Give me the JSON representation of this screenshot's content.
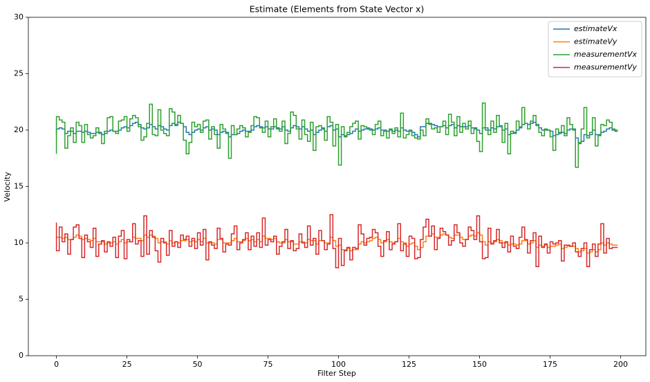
{
  "chart_data": {
    "type": "step",
    "title": "Estimate (Elements from State Vector x)",
    "x_label": "Filter Step",
    "y_label": "Velocity",
    "xlim": [
      -9.95,
      208.95
    ],
    "ylim": [
      0,
      30
    ],
    "xticks": [
      0,
      25,
      50,
      75,
      100,
      125,
      150,
      175,
      200
    ],
    "yticks": [
      0,
      5,
      10,
      15,
      20,
      25,
      30
    ],
    "grid": false,
    "legend": "upper right",
    "x": [
      0,
      1,
      2,
      3,
      4,
      5,
      6,
      7,
      8,
      9,
      10,
      11,
      12,
      13,
      14,
      15,
      16,
      17,
      18,
      19,
      20,
      21,
      22,
      23,
      24,
      25,
      26,
      27,
      28,
      29,
      30,
      31,
      32,
      33,
      34,
      35,
      36,
      37,
      38,
      39,
      40,
      41,
      42,
      43,
      44,
      45,
      46,
      47,
      48,
      49,
      50,
      51,
      52,
      53,
      54,
      55,
      56,
      57,
      58,
      59,
      60,
      61,
      62,
      63,
      64,
      65,
      66,
      67,
      68,
      69,
      70,
      71,
      72,
      73,
      74,
      75,
      76,
      77,
      78,
      79,
      80,
      81,
      82,
      83,
      84,
      85,
      86,
      87,
      88,
      89,
      90,
      91,
      92,
      93,
      94,
      95,
      96,
      97,
      98,
      99,
      100,
      101,
      102,
      103,
      104,
      105,
      106,
      107,
      108,
      109,
      110,
      111,
      112,
      113,
      114,
      115,
      116,
      117,
      118,
      119,
      120,
      121,
      122,
      123,
      124,
      125,
      126,
      127,
      128,
      129,
      130,
      131,
      132,
      133,
      134,
      135,
      136,
      137,
      138,
      139,
      140,
      141,
      142,
      143,
      144,
      145,
      146,
      147,
      148,
      149,
      150,
      151,
      152,
      153,
      154,
      155,
      156,
      157,
      158,
      159,
      160,
      161,
      162,
      163,
      164,
      165,
      166,
      167,
      168,
      169,
      170,
      171,
      172,
      173,
      174,
      175,
      176,
      177,
      178,
      179,
      180,
      181,
      182,
      183,
      184,
      185,
      186,
      187,
      188,
      189,
      190,
      191,
      192,
      193,
      194,
      195,
      196,
      197,
      198,
      199
    ],
    "series": [
      {
        "name": "estimateVx",
        "color": "#1f77b4",
        "values": [
          19.6,
          20.1,
          20.2,
          20.1,
          19.7,
          19.9,
          19.9,
          19.7,
          19.9,
          19.9,
          19.8,
          19.9,
          19.8,
          19.7,
          19.7,
          19.8,
          19.8,
          19.6,
          19.7,
          19.9,
          20.0,
          19.9,
          19.9,
          20.0,
          20.2,
          20.3,
          20.2,
          20.4,
          20.6,
          20.7,
          20.5,
          20.2,
          20.1,
          20.2,
          20.5,
          20.3,
          20.1,
          20.4,
          20.3,
          20.1,
          20.0,
          20.4,
          20.6,
          20.5,
          20.7,
          20.6,
          20.3,
          19.8,
          19.6,
          19.8,
          20.0,
          20.1,
          20.0,
          20.2,
          20.3,
          20.0,
          20.1,
          20.0,
          19.6,
          19.8,
          19.9,
          19.8,
          19.4,
          19.6,
          19.6,
          19.7,
          19.9,
          20.0,
          19.9,
          19.9,
          20.0,
          20.3,
          20.4,
          20.3,
          20.2,
          20.3,
          20.1,
          20.1,
          20.3,
          20.2,
          20.1,
          20.3,
          20.0,
          19.9,
          20.2,
          20.4,
          20.3,
          20.1,
          20.3,
          20.1,
          19.9,
          20.0,
          19.6,
          19.8,
          20.0,
          20.1,
          19.9,
          20.3,
          20.4,
          20.0,
          20.1,
          19.4,
          19.6,
          19.5,
          19.6,
          19.7,
          19.9,
          20.1,
          19.9,
          20.0,
          20.1,
          20.1,
          20.1,
          20.0,
          20.1,
          20.2,
          20.0,
          20.0,
          19.9,
          20.0,
          19.9,
          20.0,
          19.9,
          20.2,
          20.0,
          19.9,
          19.9,
          19.8,
          19.6,
          19.4,
          20.3,
          20.3,
          20.6,
          20.6,
          20.5,
          20.4,
          20.3,
          20.3,
          20.4,
          20.2,
          20.4,
          20.5,
          20.2,
          20.4,
          20.3,
          20.3,
          20.3,
          20.4,
          20.2,
          20.2,
          20.0,
          19.7,
          20.2,
          20.2,
          20.0,
          20.2,
          20.1,
          20.3,
          20.3,
          20.0,
          20.1,
          19.6,
          19.7,
          19.8,
          20.0,
          20.2,
          20.5,
          20.6,
          20.5,
          20.6,
          20.7,
          20.5,
          20.2,
          20.0,
          20.0,
          20.0,
          19.9,
          19.5,
          19.6,
          19.7,
          19.8,
          19.7,
          20.0,
          20.1,
          20.1,
          19.3,
          18.8,
          19.0,
          19.6,
          19.5,
          19.6,
          20.0,
          19.6,
          19.6,
          19.8,
          19.9,
          20.1,
          20.2,
          20.0,
          19.9
        ]
      },
      {
        "name": "estimateVy",
        "color": "#ff7f0e",
        "values": [
          10.4,
          10.5,
          10.5,
          10.4,
          10.5,
          10.3,
          10.3,
          10.5,
          10.7,
          10.6,
          10.3,
          10.4,
          10.3,
          10.2,
          10.4,
          10.1,
          10.1,
          10.1,
          9.9,
          10.0,
          10.0,
          10.1,
          9.9,
          10.1,
          10.3,
          10.0,
          10.1,
          10.1,
          10.5,
          10.4,
          10.4,
          10.2,
          10.7,
          10.5,
          10.7,
          10.6,
          10.4,
          10.0,
          10.1,
          10.1,
          9.9,
          10.2,
          10.0,
          10.1,
          10.0,
          10.2,
          10.2,
          10.3,
          10.1,
          10.2,
          10.1,
          10.3,
          10.1,
          10.4,
          10.0,
          10.0,
          10.0,
          9.9,
          10.3,
          10.3,
          10.0,
          10.0,
          10.0,
          10.2,
          10.4,
          10.1,
          10.1,
          10.2,
          10.4,
          10.2,
          10.3,
          10.1,
          10.3,
          10.1,
          10.6,
          10.4,
          10.4,
          10.3,
          10.4,
          10.1,
          10.0,
          10.0,
          10.3,
          10.1,
          10.1,
          9.9,
          9.9,
          10.1,
          10.1,
          10.0,
          10.3,
          10.2,
          10.2,
          9.9,
          10.2,
          10.2,
          10.0,
          10.0,
          10.5,
          10.2,
          9.7,
          9.8,
          9.4,
          9.4,
          9.5,
          9.3,
          9.4,
          9.4,
          9.9,
          10.1,
          10.0,
          10.1,
          10.2,
          10.4,
          10.5,
          10.3,
          10.0,
          10.1,
          10.3,
          10.1,
          10.0,
          10.1,
          10.4,
          10.1,
          10.0,
          9.7,
          9.9,
          10.0,
          9.7,
          9.4,
          9.6,
          10.1,
          10.6,
          10.6,
          10.8,
          10.5,
          10.5,
          10.7,
          10.8,
          10.7,
          10.5,
          10.4,
          10.7,
          10.7,
          10.5,
          10.3,
          10.3,
          10.6,
          10.7,
          10.6,
          10.9,
          10.7,
          10.1,
          9.8,
          10.1,
          10.0,
          10.1,
          10.3,
          10.2,
          10.0,
          10.0,
          9.8,
          9.9,
          9.9,
          9.8,
          9.9,
          10.2,
          10.2,
          9.9,
          10.0,
          10.2,
          9.6,
          9.8,
          9.7,
          9.8,
          9.6,
          9.7,
          9.7,
          9.8,
          9.9,
          9.5,
          9.6,
          9.7,
          9.7,
          9.7,
          9.5,
          9.2,
          9.3,
          9.5,
          9.1,
          9.2,
          9.4,
          9.2,
          9.4,
          10.0,
          9.8,
          10.0,
          9.9,
          9.8,
          9.8
        ]
      },
      {
        "name": "measurementVx",
        "color": "#2ca02c",
        "values": [
          17.9,
          21.2,
          20.9,
          20.7,
          18.4,
          19.5,
          20.2,
          18.9,
          20.7,
          20.4,
          18.9,
          20.5,
          19.6,
          19.3,
          19.5,
          20.2,
          19.7,
          18.8,
          19.9,
          21.1,
          21.2,
          19.9,
          19.7,
          20.8,
          20.9,
          21.2,
          19.9,
          21.0,
          21.3,
          21.1,
          20.3,
          19.1,
          19.4,
          20.6,
          22.3,
          19.6,
          19.5,
          21.8,
          20.0,
          19.7,
          19.5,
          21.9,
          21.6,
          20.4,
          21.3,
          20.6,
          19.1,
          17.9,
          18.9,
          20.7,
          20.3,
          20.5,
          19.8,
          20.8,
          20.9,
          19.2,
          20.3,
          19.6,
          18.4,
          20.5,
          20.1,
          19.7,
          17.5,
          20.4,
          19.6,
          20.1,
          20.4,
          20.2,
          19.4,
          19.8,
          20.4,
          21.2,
          21.1,
          20.2,
          19.8,
          20.8,
          19.4,
          20.3,
          21.0,
          20.1,
          19.9,
          20.8,
          18.8,
          19.7,
          21.6,
          21.3,
          20.1,
          19.2,
          20.9,
          19.6,
          19.0,
          20.7,
          18.2,
          20.3,
          20.4,
          20.2,
          19.1,
          21.2,
          20.7,
          18.6,
          20.5,
          16.9,
          20.3,
          19.4,
          19.8,
          20.3,
          20.6,
          20.8,
          19.2,
          20.4,
          20.3,
          20.2,
          20.0,
          19.6,
          20.5,
          20.8,
          19.5,
          19.9,
          19.3,
          20.1,
          19.7,
          20.2,
          19.4,
          21.5,
          19.3,
          19.6,
          20.0,
          19.5,
          19.3,
          19.2,
          20.0,
          19.5,
          21.0,
          20.5,
          20.1,
          20.2,
          19.8,
          20.3,
          20.8,
          19.6,
          21.4,
          20.7,
          19.5,
          21.2,
          19.8,
          20.6,
          20.1,
          20.8,
          19.7,
          20.1,
          19.0,
          18.1,
          22.4,
          20.0,
          19.6,
          20.8,
          19.8,
          21.3,
          20.4,
          18.9,
          20.6,
          17.9,
          19.9,
          19.7,
          20.8,
          20.3,
          22.0,
          20.6,
          20.1,
          20.8,
          21.3,
          20.4,
          19.8,
          19.5,
          20.1,
          20.0,
          19.4,
          18.2,
          20.1,
          19.8,
          20.4,
          19.5,
          21.1,
          20.5,
          20.0,
          16.7,
          18.9,
          20.1,
          22.0,
          19.3,
          19.8,
          21.1,
          18.6,
          19.5,
          20.5,
          20.4,
          20.9,
          20.7,
          20.1,
          20.0
        ]
      },
      {
        "name": "measurementVy",
        "color": "#d62728",
        "values": [
          11.8,
          9.3,
          11.4,
          10.1,
          10.8,
          9.0,
          10.3,
          11.4,
          11.6,
          10.4,
          8.7,
          10.7,
          10.1,
          9.6,
          11.3,
          8.8,
          9.9,
          10.2,
          9.2,
          10.1,
          9.7,
          10.5,
          8.7,
          10.6,
          11.1,
          8.6,
          10.3,
          10.1,
          11.7,
          9.9,
          10.2,
          8.8,
          12.4,
          9.0,
          11.1,
          10.5,
          9.3,
          8.3,
          10.4,
          10.0,
          8.9,
          11.1,
          9.7,
          10.1,
          9.6,
          10.7,
          10.3,
          10.6,
          9.7,
          10.4,
          9.5,
          10.9,
          9.8,
          11.2,
          8.5,
          10.1,
          9.8,
          9.5,
          11.3,
          10.4,
          9.2,
          9.9,
          9.8,
          10.8,
          11.5,
          9.4,
          10.0,
          10.3,
          10.9,
          9.4,
          10.6,
          9.7,
          10.9,
          9.6,
          12.2,
          9.8,
          10.3,
          10.1,
          10.6,
          9.0,
          9.7,
          10.1,
          11.2,
          9.5,
          10.2,
          9.3,
          9.5,
          10.8,
          10.0,
          9.6,
          11.5,
          9.8,
          10.4,
          9.0,
          11.1,
          10.2,
          9.4,
          9.9,
          12.5,
          9.5,
          7.8,
          10.4,
          8.0,
          9.3,
          9.6,
          8.5,
          9.6,
          9.5,
          11.6,
          10.8,
          9.8,
          10.4,
          10.5,
          11.2,
          10.9,
          9.7,
          8.8,
          10.2,
          11.0,
          9.4,
          9.9,
          10.1,
          11.7,
          9.3,
          9.9,
          8.8,
          10.6,
          10.4,
          8.6,
          8.7,
          10.3,
          11.4,
          12.1,
          10.6,
          11.5,
          9.4,
          10.4,
          11.3,
          11.0,
          10.7,
          9.8,
          10.2,
          11.6,
          10.9,
          10.0,
          9.7,
          10.3,
          11.4,
          11.1,
          10.3,
          12.4,
          10.1,
          8.6,
          8.7,
          11.3,
          9.9,
          10.2,
          11.2,
          10.0,
          9.6,
          10.1,
          9.2,
          10.6,
          9.7,
          9.5,
          10.5,
          11.4,
          10.3,
          9.1,
          10.2,
          10.9,
          7.9,
          10.6,
          9.6,
          9.9,
          9.1,
          10.1,
          9.9,
          10.0,
          10.2,
          8.4,
          9.8,
          9.8,
          9.7,
          10.0,
          9.2,
          8.8,
          9.5,
          10.0,
          7.9,
          9.4,
          9.9,
          8.8,
          9.9,
          11.7,
          9.1,
          10.4,
          9.5,
          9.6,
          9.6
        ]
      }
    ]
  }
}
